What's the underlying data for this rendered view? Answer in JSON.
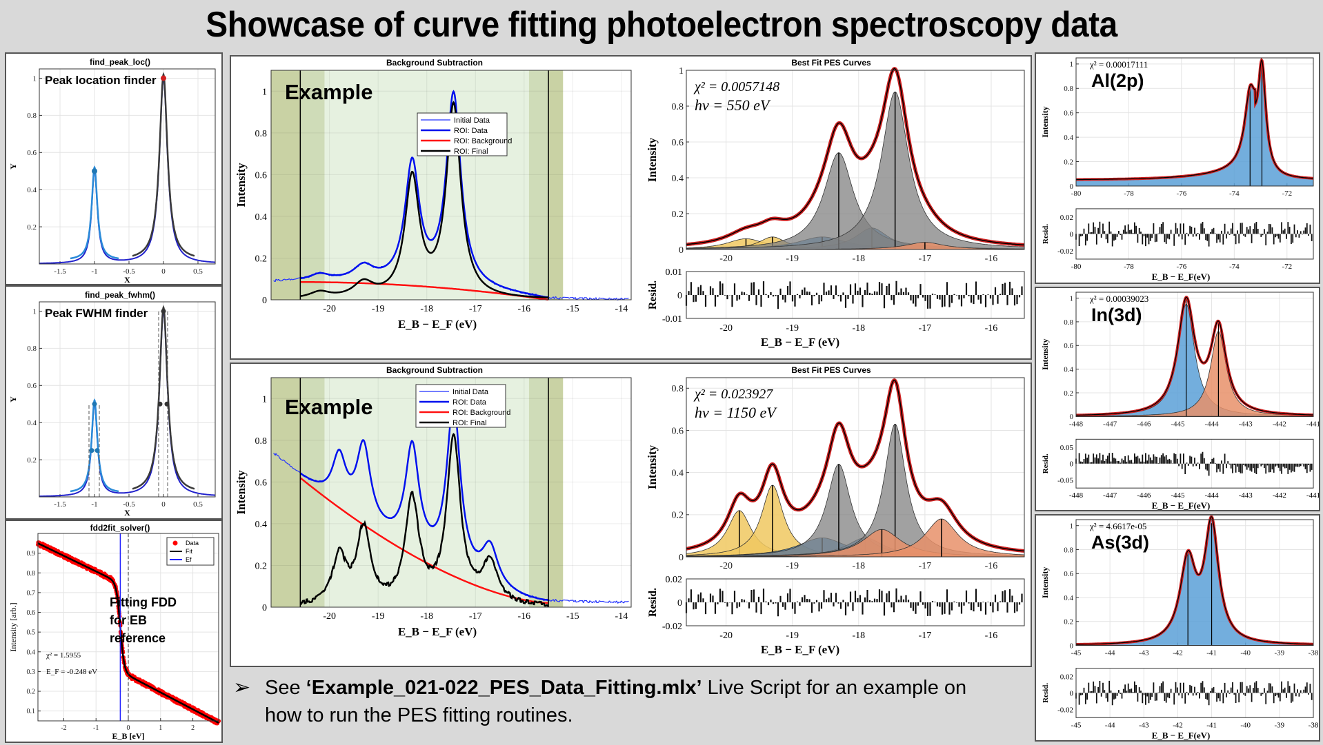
{
  "page_title": "Showcase of curve fitting photoelectron spectroscopy data",
  "note": {
    "prefix": "See ",
    "script_name": "‘Example_021-022_PES_Data_Fitting.mlx’",
    "suffix": " Live Script for an example on",
    "line2": "how to run the PES fitting routines."
  },
  "colors": {
    "blue": "#0000ff",
    "red": "#ff0000",
    "black": "#000000",
    "fit_red": "#cc2020",
    "roi_green": "#e8f3e4",
    "band": "#cfd4a8",
    "peak_blue": "#1f77b4",
    "area_blue": "#6aa8d8",
    "area_gray": "#999999",
    "area_yellow": "#f0c860",
    "area_orange": "#e8906a"
  },
  "chart_data": [
    {
      "id": "find_peak_loc",
      "type": "line",
      "title": "find_peak_loc()",
      "annotation": "Peak location finder",
      "xlabel": "X",
      "ylabel": "Y",
      "xlim": [
        -1.8,
        0.75
      ],
      "ylim": [
        0,
        1.05
      ],
      "xticks": [
        -1.5,
        -1,
        -0.5,
        0,
        0.5
      ],
      "xtick_labels": [
        "-1.5",
        "-1",
        "-0.5",
        "0",
        "0.5"
      ],
      "yticks": [
        0.2,
        0.4,
        0.6,
        0.8,
        1
      ],
      "ytick_labels": [
        "0.2",
        "0.4",
        "0.6",
        "0.8",
        "1"
      ],
      "series": [
        {
          "name": "peak_1",
          "center": -1.0,
          "height": 0.5,
          "width": 0.05
        },
        {
          "name": "peak_2",
          "center": 0.0,
          "height": 1.0,
          "width": 0.07
        }
      ],
      "markers": [
        {
          "x": -1.0,
          "y": 0.5
        },
        {
          "x": 0.0,
          "y": 1.0
        }
      ]
    },
    {
      "id": "find_peak_fwhm",
      "type": "line",
      "title": "find_peak_fwhm()",
      "annotation": "Peak FWHM finder",
      "xlabel": "X",
      "ylabel": "Y",
      "xlim": [
        -1.8,
        0.75
      ],
      "ylim": [
        0,
        1.05
      ],
      "xticks": [
        -1.5,
        -1,
        -0.5,
        0,
        0.5
      ],
      "xtick_labels": [
        "-1.5",
        "-1",
        "-0.5",
        "0",
        "0.5"
      ],
      "yticks": [
        0.2,
        0.4,
        0.6,
        0.8,
        1
      ],
      "ytick_labels": [
        "0.2",
        "0.4",
        "0.6",
        "0.8",
        "1"
      ],
      "series": [
        {
          "name": "peak_1",
          "center": -1.0,
          "height": 0.5,
          "width": 0.05
        },
        {
          "name": "peak_2",
          "center": 0.0,
          "height": 1.0,
          "width": 0.07
        }
      ],
      "fwhm_lines": [
        -1.08,
        -0.93,
        -0.07,
        0.06
      ]
    },
    {
      "id": "fdd2fit_solver",
      "type": "scatter",
      "title": "fdd2fit_solver()",
      "annotation": [
        "Fitting FDD",
        "for EB",
        "reference"
      ],
      "xlabel": "E_B [eV]",
      "ylabel": "Intensity [arb.]",
      "xlim": [
        -2.8,
        2.8
      ],
      "ylim": [
        0.05,
        1.0
      ],
      "xticks": [
        -2,
        -1,
        0,
        1,
        2
      ],
      "xtick_labels": [
        "-2",
        "-1",
        "0",
        "1",
        "2"
      ],
      "yticks": [
        0.1,
        0.2,
        0.3,
        0.4,
        0.5,
        0.6,
        0.7,
        0.8,
        0.9
      ],
      "ytick_labels": [
        "0.1",
        "0.2",
        "0.3",
        "0.4",
        "0.5",
        "0.6",
        "0.7",
        "0.8",
        "0.9"
      ],
      "legend": [
        "Data",
        "Fit",
        "Ef"
      ],
      "chi2": "χ² = 1.5955",
      "ef_label": "E_F = -0.248 eV",
      "ef": -0.248,
      "fit_left": [
        -2.8,
        0.95,
        -0.4,
        0.76
      ],
      "fit_right": [
        0.0,
        0.28,
        2.8,
        0.04
      ]
    },
    {
      "id": "bg_sub_1",
      "type": "line",
      "title": "Background Subtraction",
      "annotation": "Example",
      "xlabel": "E_B − E_F (eV)",
      "ylabel": "Intensity",
      "xlim": [
        -21.2,
        -13.8
      ],
      "ylim": [
        0,
        1.1
      ],
      "xticks": [
        -20,
        -19,
        -18,
        -17,
        -16,
        -15,
        -14
      ],
      "xtick_labels": [
        "-20",
        "-19",
        "-18",
        "-17",
        "-16",
        "-15",
        "-14"
      ],
      "yticks": [
        0,
        0.2,
        0.4,
        0.6,
        0.8,
        1
      ],
      "ytick_labels": [
        "0",
        "0.2",
        "0.4",
        "0.6",
        "0.8",
        "1"
      ],
      "legend": [
        "Initial Data",
        "ROI: Data",
        "ROI: Background",
        "ROI: Final"
      ],
      "roi": [
        -20.6,
        -15.5
      ],
      "peaks": [
        {
          "c": -20.2,
          "h": 0.03,
          "w": 0.25
        },
        {
          "c": -19.3,
          "h": 0.07,
          "w": 0.25
        },
        {
          "c": -18.3,
          "h": 0.57,
          "w": 0.18
        },
        {
          "c": -17.45,
          "h": 0.92,
          "w": 0.18
        }
      ],
      "background": {
        "start": 0.085,
        "end": 0.0
      }
    },
    {
      "id": "fit_1",
      "type": "area",
      "title": "Best Fit PES Curves",
      "xlabel": "E_B − E_F (eV)",
      "ylabel": "Intensity",
      "chi2": "χ² = 0.0057148",
      "hv": "hv = 550 eV",
      "xlim": [
        -20.6,
        -15.5
      ],
      "ylim": [
        0,
        1.0
      ],
      "xticks": [
        -20,
        -19,
        -18,
        -17,
        -16
      ],
      "xtick_labels": [
        "-20",
        "-19",
        "-18",
        "-17",
        "-16"
      ],
      "yticks": [
        0,
        0.2,
        0.4,
        0.6,
        0.8,
        1
      ],
      "ytick_labels": [
        "0",
        "0.2",
        "0.4",
        "0.6",
        "0.8",
        "1"
      ],
      "components": [
        {
          "c": -19.7,
          "h": 0.06,
          "w": 0.35,
          "color": "yellow"
        },
        {
          "c": -19.3,
          "h": 0.07,
          "w": 0.25,
          "color": "yellow"
        },
        {
          "c": -18.55,
          "h": 0.07,
          "w": 0.45,
          "color": "blue"
        },
        {
          "c": -17.8,
          "h": 0.12,
          "w": 0.3,
          "color": "blue"
        },
        {
          "c": -18.3,
          "h": 0.54,
          "w": 0.27,
          "color": "gray"
        },
        {
          "c": -17.45,
          "h": 0.88,
          "w": 0.25,
          "color": "gray"
        },
        {
          "c": -17.0,
          "h": 0.04,
          "w": 0.35,
          "color": "orange"
        }
      ],
      "resid_ylim": [
        -0.01,
        0.01
      ],
      "resid_ticks": [
        "0.01",
        "0",
        "-0.01"
      ]
    },
    {
      "id": "bg_sub_2",
      "type": "line",
      "title": "Background Subtraction",
      "annotation": "Example",
      "xlabel": "E_B − E_F (eV)",
      "ylabel": "Intensity",
      "xlim": [
        -21.2,
        -13.8
      ],
      "ylim": [
        0,
        1.1
      ],
      "xticks": [
        -20,
        -19,
        -18,
        -17,
        -16,
        -15,
        -14
      ],
      "xtick_labels": [
        "-20",
        "-19",
        "-18",
        "-17",
        "-16",
        "-15",
        "-14"
      ],
      "yticks": [
        0,
        0.2,
        0.4,
        0.6,
        0.8,
        1
      ],
      "ytick_labels": [
        "0",
        "0.2",
        "0.4",
        "0.6",
        "0.8",
        "1"
      ],
      "legend": [
        "Initial Data",
        "ROI: Data",
        "ROI: Background",
        "ROI: Final"
      ],
      "roi": [
        -20.6,
        -15.5
      ],
      "peaks": [
        {
          "c": -19.8,
          "h": 0.23,
          "w": 0.17
        },
        {
          "c": -19.3,
          "h": 0.36,
          "w": 0.17
        },
        {
          "c": -18.3,
          "h": 0.5,
          "w": 0.17
        },
        {
          "c": -17.45,
          "h": 0.8,
          "w": 0.17
        },
        {
          "c": -16.7,
          "h": 0.19,
          "w": 0.2
        }
      ],
      "background": {
        "start": 0.6,
        "end": 0.02
      }
    },
    {
      "id": "fit_2",
      "type": "area",
      "title": "Best Fit PES Curves",
      "xlabel": "E_B − E_F (eV)",
      "ylabel": "Intensity",
      "chi2": "χ² = 0.023927",
      "hv": "hv = 1150 eV",
      "xlim": [
        -20.6,
        -15.5
      ],
      "ylim": [
        0,
        0.85
      ],
      "xticks": [
        -20,
        -19,
        -18,
        -17,
        -16
      ],
      "xtick_labels": [
        "-20",
        "-19",
        "-18",
        "-17",
        "-16"
      ],
      "yticks": [
        0,
        0.2,
        0.4,
        0.6,
        0.8
      ],
      "ytick_labels": [
        "0",
        "0.2",
        "0.4",
        "0.6",
        "0.8"
      ],
      "components": [
        {
          "c": -19.8,
          "h": 0.22,
          "w": 0.22,
          "color": "yellow"
        },
        {
          "c": -19.3,
          "h": 0.34,
          "w": 0.2,
          "color": "yellow"
        },
        {
          "c": -18.55,
          "h": 0.09,
          "w": 0.45,
          "color": "blue"
        },
        {
          "c": -17.9,
          "h": 0.09,
          "w": 0.35,
          "color": "blue"
        },
        {
          "c": -18.3,
          "h": 0.44,
          "w": 0.22,
          "color": "gray"
        },
        {
          "c": -17.45,
          "h": 0.63,
          "w": 0.2,
          "color": "gray"
        },
        {
          "c": -17.65,
          "h": 0.13,
          "w": 0.35,
          "color": "orange"
        },
        {
          "c": -16.75,
          "h": 0.18,
          "w": 0.3,
          "color": "orange"
        }
      ],
      "resid_ylim": [
        -0.02,
        0.02
      ],
      "resid_ticks": [
        "0.02",
        "0",
        "-0.02"
      ]
    },
    {
      "id": "al2p",
      "type": "area",
      "label": "Al(2p)",
      "chi2": "χ² = 0.00017111",
      "xlabel": "E_B − E_F(eV)",
      "ylabel": "Intensity",
      "xlim": [
        -80,
        -71
      ],
      "ylim": [
        0,
        1.05
      ],
      "xticks": [
        -80,
        -78,
        -76,
        -74,
        -72
      ],
      "xtick_labels": [
        "-80",
        "-78",
        "-76",
        "-74",
        "-72"
      ],
      "yticks": [
        0,
        0.2,
        0.4,
        0.6,
        0.8,
        1
      ],
      "ytick_labels": [
        "0",
        "0.2",
        "0.4",
        "0.6",
        "0.8",
        "1"
      ],
      "peaks": [
        {
          "c": -73.4,
          "h": 0.55,
          "w": 0.25
        },
        {
          "c": -72.95,
          "h": 0.85,
          "w": 0.18
        }
      ],
      "tail": 0.05,
      "resid_ticks": [
        "0.02",
        "0",
        "-0.02"
      ]
    },
    {
      "id": "in3d",
      "type": "area",
      "label": "In(3d)",
      "chi2": "χ² = 0.00039023",
      "xlabel": "E_B − E_F(eV)",
      "ylabel": "Intensity",
      "xlim": [
        -448,
        -441
      ],
      "ylim": [
        0,
        1.05
      ],
      "xticks": [
        -448,
        -447,
        -446,
        -445,
        -444,
        -443,
        -442,
        -441
      ],
      "xtick_labels": [
        "-448",
        "-447",
        "-446",
        "-445",
        "-444",
        "-443",
        "-442",
        "-441"
      ],
      "yticks": [
        0,
        0.2,
        0.4,
        0.6,
        0.8,
        1
      ],
      "ytick_labels": [
        "0",
        "0.2",
        "0.4",
        "0.6",
        "0.8",
        "1"
      ],
      "peaks": [
        {
          "c": -444.75,
          "h": 0.95,
          "w": 0.3
        },
        {
          "c": -443.8,
          "h": 0.72,
          "w": 0.28
        }
      ],
      "resid_ticks": [
        "0.05",
        "0",
        "-0.05"
      ]
    },
    {
      "id": "as3d",
      "type": "area",
      "label": "As(3d)",
      "chi2": "χ² = 4.6617e-05",
      "xlabel": "E_B − E_F(eV)",
      "ylabel": "Intensity",
      "xlim": [
        -45,
        -38
      ],
      "ylim": [
        0,
        1.05
      ],
      "xticks": [
        -45,
        -44,
        -43,
        -42,
        -41,
        -40,
        -39,
        -38
      ],
      "xtick_labels": [
        "-45",
        "-44",
        "-43",
        "-42",
        "-41",
        "-40",
        "-39",
        "-38"
      ],
      "yticks": [
        0,
        0.2,
        0.4,
        0.6,
        0.8,
        1
      ],
      "ytick_labels": [
        "0",
        "0.2",
        "0.4",
        "0.6",
        "0.8",
        "1"
      ],
      "peaks": [
        {
          "c": -41.7,
          "h": 0.68,
          "w": 0.28
        },
        {
          "c": -41.0,
          "h": 0.98,
          "w": 0.25
        }
      ],
      "resid_ticks": [
        "0.02",
        "0",
        "-0.02"
      ]
    }
  ]
}
